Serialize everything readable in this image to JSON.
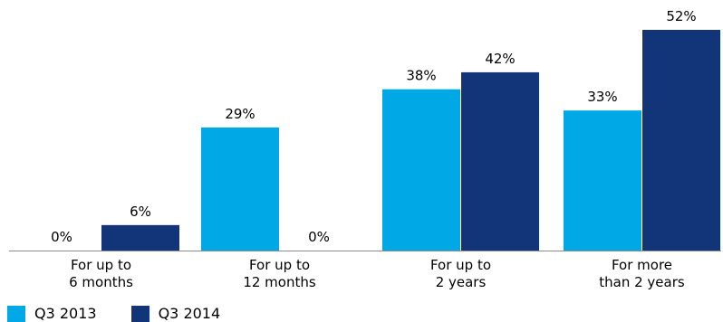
{
  "chart_data": {
    "type": "bar",
    "categories": [
      [
        "For up to",
        "6 months"
      ],
      [
        "For up to",
        "12 months"
      ],
      [
        "For up to",
        "2 years"
      ],
      [
        "For more",
        "than 2 years"
      ]
    ],
    "series": [
      {
        "name": "Q3 2013",
        "color": "#00a9e6",
        "values": [
          0,
          29,
          38,
          33
        ],
        "labels": [
          "0%",
          "29%",
          "38%",
          "33%"
        ]
      },
      {
        "name": "Q3 2014",
        "color": "#123479",
        "values": [
          6,
          0,
          42,
          52
        ],
        "labels": [
          "6%",
          "0%",
          "42%",
          "52%"
        ]
      }
    ],
    "ylim": [
      0,
      52
    ],
    "grid": false,
    "legend_position": "bottom-left"
  },
  "legend": {
    "items": [
      {
        "label": "Q3 2013",
        "color": "#00a9e6"
      },
      {
        "label": "Q3 2014",
        "color": "#123479"
      }
    ]
  }
}
